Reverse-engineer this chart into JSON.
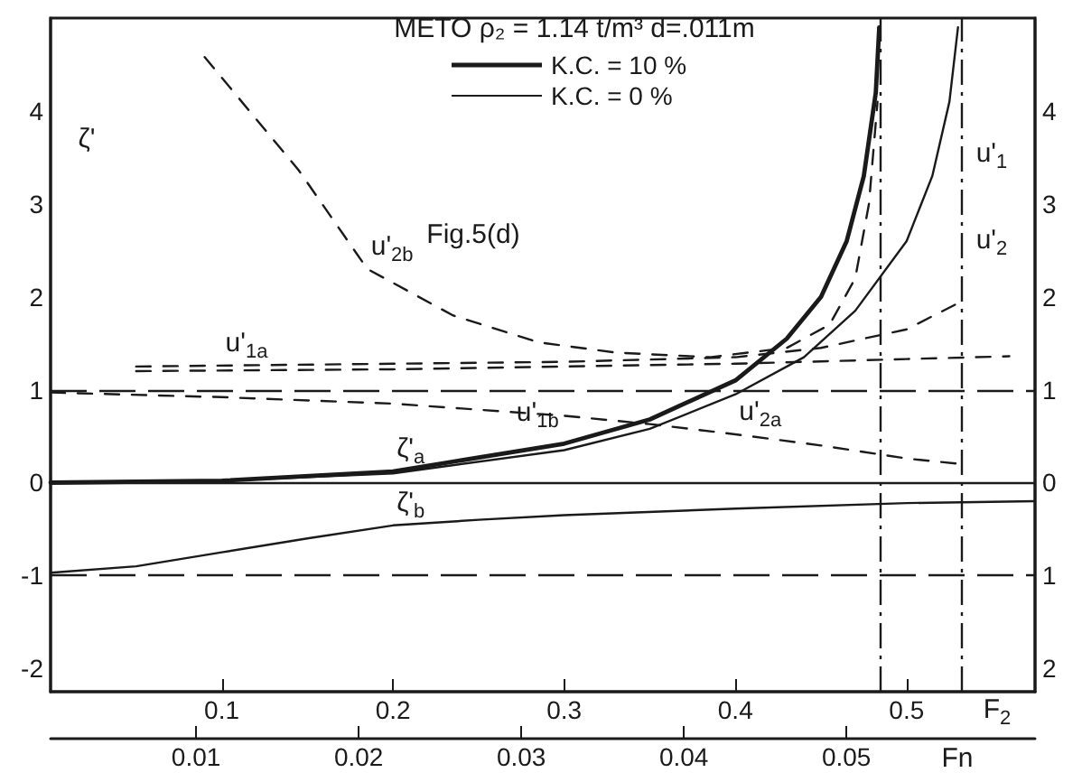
{
  "chart_data": {
    "type": "line",
    "legend_title": "METO ρ₂ = 1.14 t/m³ d=.011m",
    "legend": "top",
    "xlabel": "F$_{2}$",
    "x2label": "Fn",
    "ylabel": "ζ'",
    "y2label": "u'$_{1}$ u'$_{2}$",
    "xlim": [
      0,
      0.575
    ],
    "xticks": [
      0.1,
      0.2,
      0.3,
      0.4,
      0.5
    ],
    "x2lim": [
      0.00105,
      0.0616
    ],
    "x2ticks": [
      0.01,
      0.02,
      0.03,
      0.04,
      0.05
    ],
    "ylim": [
      -2.25,
      5.0
    ],
    "yticks": [
      -2,
      -1,
      0,
      1,
      2,
      3,
      4
    ],
    "y2lim": [
      -2.25,
      5.0
    ],
    "y2ticks": [
      {
        "value": -2,
        "label": "2"
      },
      {
        "value": -1,
        "label": "1"
      },
      0,
      1,
      2,
      3,
      4
    ],
    "grid": false,
    "marker": "none",
    "series": [
      {
        "name": "K.C. = 10 %",
        "color": "#1a1a1a",
        "line_style": "solid",
        "x": [
          0,
          0.1,
          0.2,
          0.3,
          0.35,
          0.4,
          0.43,
          0.45,
          0.465,
          0.475,
          0.482,
          0.484
        ],
        "values": [
          0,
          0.02,
          0.12,
          0.42,
          0.68,
          1.1,
          1.55,
          2.0,
          2.6,
          3.3,
          4.2,
          4.9
        ]
      },
      {
        "name": "K.C. = 0 %",
        "color": "#1a1a1a",
        "line_style": "solid",
        "x": [
          0,
          0.1,
          0.2,
          0.3,
          0.35,
          0.4,
          0.44,
          0.47,
          0.5,
          0.515,
          0.525,
          0.53
        ],
        "values": [
          0,
          0.02,
          0.1,
          0.35,
          0.58,
          0.95,
          1.35,
          1.85,
          2.6,
          3.3,
          4.1,
          4.9
        ]
      },
      {
        "color": "#1a1a1a",
        "line_style": "solid",
        "x": [
          0,
          0.05,
          0.1,
          0.15,
          0.2,
          0.25,
          0.3,
          0.4,
          0.5,
          0.575
        ],
        "values": [
          -0.97,
          -0.9,
          -0.75,
          -0.6,
          -0.46,
          -0.4,
          -0.35,
          -0.28,
          -0.22,
          -0.2
        ]
      },
      {
        "color": "#1a1a1a",
        "line_style": "dashed",
        "x": [
          0.05,
          0.2,
          0.3,
          0.4,
          0.45,
          0.5,
          0.532
        ],
        "values": [
          1.25,
          1.28,
          1.3,
          1.35,
          1.45,
          1.65,
          1.95
        ]
      },
      {
        "color": "#1a1a1a",
        "line_style": "dashed",
        "x": [
          0.05,
          0.2,
          0.3,
          0.4,
          0.5,
          0.56
        ],
        "values": [
          1.2,
          1.22,
          1.25,
          1.28,
          1.33,
          1.36
        ]
      },
      {
        "color": "#1a1a1a",
        "line_style": "dashed",
        "x": [
          0,
          0.1,
          0.2,
          0.3,
          0.35,
          0.4,
          0.45,
          0.5,
          0.532
        ],
        "values": [
          0.97,
          0.92,
          0.85,
          0.72,
          0.63,
          0.52,
          0.4,
          0.26,
          0.2
        ]
      },
      {
        "color": "#1a1a1a",
        "line_style": "dashed",
        "x": [
          0.09,
          0.145,
          0.185,
          0.235,
          0.285,
          0.33,
          0.385,
          0.43,
          0.455,
          0.47,
          0.478,
          0.483
        ],
        "values": [
          4.58,
          3.36,
          2.3,
          1.8,
          1.51,
          1.4,
          1.35,
          1.45,
          1.7,
          2.2,
          3.0,
          4.1
        ]
      }
    ],
    "ref_lines": [
      {
        "axis": "y",
        "value": 0,
        "line_style": "solid",
        "color": "#1a1a1a"
      },
      {
        "axis": "y",
        "value": 1,
        "line_style": "dashed",
        "color": "#1a1a1a"
      },
      {
        "axis": "y",
        "value": -1,
        "line_style": "dashed",
        "color": "#1a1a1a"
      },
      {
        "axis": "x",
        "value": 0.485,
        "line_style": "dashed",
        "color": "#1a1a1a"
      },
      {
        "axis": "x",
        "value": 0.532,
        "line_style": "dashed",
        "color": "#1a1a1a"
      }
    ],
    "annotations": [
      "Fig.5(d)",
      {
        "text": "u'$_{2b}$",
        "x": 0.185,
        "y": 2.3
      },
      {
        "text": "u'$_{1a}$",
        "x": 0.1,
        "y": 1.26
      },
      {
        "text": "u'$_{1b}$",
        "x": 0.27,
        "y": 1
      },
      {
        "text": "ζ'$_{a}$",
        "x": 0.2,
        "y": 0.12
      },
      {
        "text": "ζ'$_{b}$",
        "x": 0.2,
        "y": -0.46
      },
      {
        "text": "u'$_{2a}$",
        "x": 0.4,
        "y": 0.52
      }
    ]
  }
}
